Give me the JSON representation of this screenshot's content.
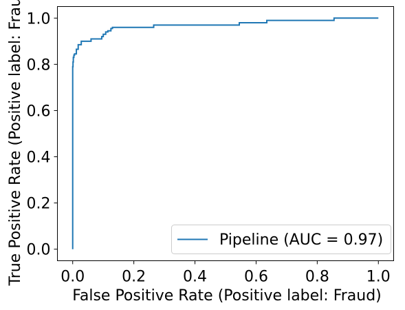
{
  "chart_data": {
    "type": "line",
    "xlabel": "False Positive Rate (Positive label: Fraud)",
    "ylabel": "True Positive Rate (Positive label: Fraud)",
    "xlim": [
      -0.05,
      1.05
    ],
    "ylim": [
      -0.05,
      1.05
    ],
    "x_ticks": [
      "0.0",
      "0.2",
      "0.4",
      "0.6",
      "0.8",
      "1.0"
    ],
    "y_ticks": [
      "0.0",
      "0.2",
      "0.4",
      "0.6",
      "0.8",
      "1.0"
    ],
    "grid": false,
    "legend": {
      "position": "bottom-right",
      "entries": [
        "Pipeline (AUC = 0.97)"
      ]
    },
    "series": [
      {
        "name": "Pipeline (AUC = 0.97)",
        "color": "#1f77b4",
        "x": [
          0.0,
          0.0,
          0.001,
          0.001,
          0.002,
          0.002,
          0.004,
          0.004,
          0.006,
          0.006,
          0.012,
          0.012,
          0.018,
          0.018,
          0.028,
          0.028,
          0.06,
          0.06,
          0.095,
          0.095,
          0.1,
          0.1,
          0.108,
          0.108,
          0.115,
          0.115,
          0.125,
          0.125,
          0.13,
          0.13,
          0.265,
          0.265,
          0.545,
          0.545,
          0.635,
          0.635,
          0.855,
          0.855,
          1.0
        ],
        "y": [
          0.0,
          0.79,
          0.79,
          0.81,
          0.81,
          0.83,
          0.83,
          0.84,
          0.84,
          0.845,
          0.845,
          0.865,
          0.865,
          0.885,
          0.885,
          0.9,
          0.9,
          0.91,
          0.91,
          0.92,
          0.92,
          0.93,
          0.93,
          0.94,
          0.94,
          0.945,
          0.945,
          0.955,
          0.955,
          0.96,
          0.96,
          0.97,
          0.97,
          0.98,
          0.98,
          0.99,
          0.99,
          1.0,
          1.0
        ]
      }
    ]
  }
}
